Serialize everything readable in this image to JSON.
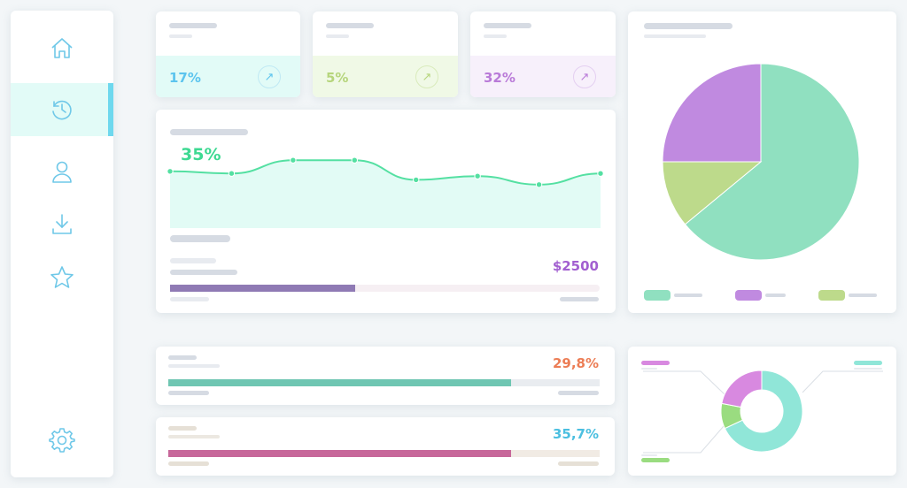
{
  "sidebar": {
    "items": [
      {
        "icon": "home-icon",
        "active": false
      },
      {
        "icon": "history-icon",
        "active": true
      },
      {
        "icon": "user-icon",
        "active": false
      },
      {
        "icon": "download-icon",
        "active": false
      },
      {
        "icon": "star-icon",
        "active": false
      }
    ],
    "footer_icon": "gear-icon"
  },
  "stat_cards": [
    {
      "value": "17%",
      "color": "#5cc4ee",
      "bg": "#e2fbf7"
    },
    {
      "value": "5%",
      "color": "#b6d57c",
      "bg": "#f0f9e6"
    },
    {
      "value": "32%",
      "color": "#b97ad8",
      "bg": "#f7f0fb"
    }
  ],
  "trend": {
    "value": "35%",
    "color": "#3ed992",
    "amount": "$2500",
    "progress": 0.43
  },
  "metrics": [
    {
      "value": "29,8%",
      "color": "#ec7d55",
      "bar_color": "#6fc6b2",
      "progress": 0.795
    },
    {
      "value": "35,7%",
      "color": "#4bbfe0",
      "bar_color": "#c7679a",
      "progress": 0.795
    }
  ],
  "chart_data": [
    {
      "type": "line",
      "x": [
        1,
        2,
        3,
        4,
        5,
        6,
        7,
        8
      ],
      "series": [
        {
          "values": [
            0.67,
            0.63,
            0.88,
            0.88,
            0.51,
            0.58,
            0.42,
            0.63
          ]
        }
      ]
    },
    {
      "type": "pie",
      "values": [
        64,
        11,
        25
      ],
      "colors": [
        "#90e0c0",
        "#bdda8b",
        "#c08ae0"
      ]
    },
    {
      "type": "pie",
      "values": [
        68,
        10,
        22
      ],
      "colors": [
        "#90e6d8",
        "#9adc80",
        "#d889e0"
      ]
    }
  ]
}
